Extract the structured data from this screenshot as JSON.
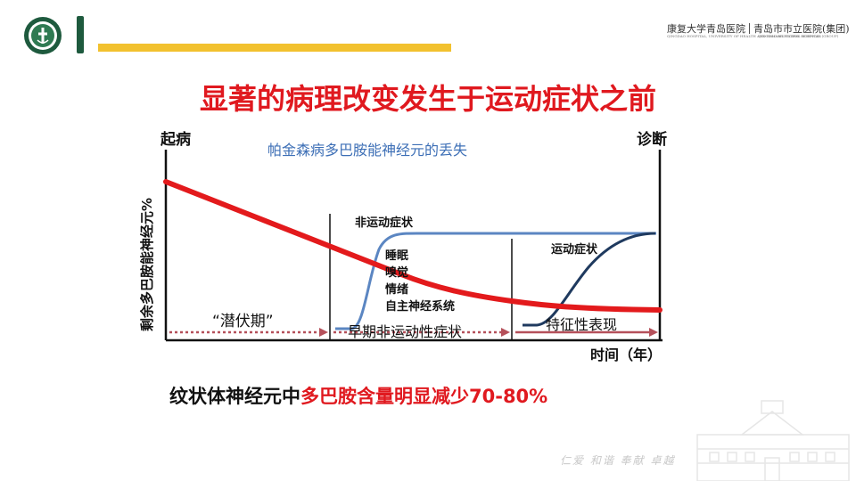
{
  "hospital": {
    "name_a": "康复大学青岛医院",
    "name_b": "青岛市市立医院(集团)",
    "sub_a": "QINGDAO HOSPITAL, UNIVERSITY OF HEALTH AND REHABILITATION SCIENCES",
    "sub_b": "QINGDAO MUNICIPAL HOSPITAL (GROUP)"
  },
  "title": "显著的病理改变发生于运动症状之前",
  "chart": {
    "top_left_label": "起病",
    "top_right_label": "诊断",
    "y_axis_label": "剩余多巴胺能神经元%",
    "x_axis_label": "时间（年）",
    "curve_title": "帕金森病多巴胺能神经元的丢失",
    "nonmotor_label": "非运动症状",
    "nonmotor_items": [
      "睡眠",
      "嗅觉",
      "情绪",
      "自主神经系统"
    ],
    "motor_label": "运动症状",
    "phase_1": "“潜伏期”",
    "phase_2": "早期非运动性症状",
    "phase_3": "特征性表现"
  },
  "conclusion": {
    "prefix": "纹状体神经元中",
    "highlight": "多巴胺含量明显减少70-80%"
  },
  "motto": "仁爱 和谐 奉献 卓越",
  "colors": {
    "accent_red": "#e0191f",
    "brand_green": "#1e5a3e",
    "accent_yellow": "#f2c12e",
    "curve_blue": "#4a78b8",
    "dark_blue": "#1f3a5f",
    "dotted_red": "#b5505a"
  }
}
